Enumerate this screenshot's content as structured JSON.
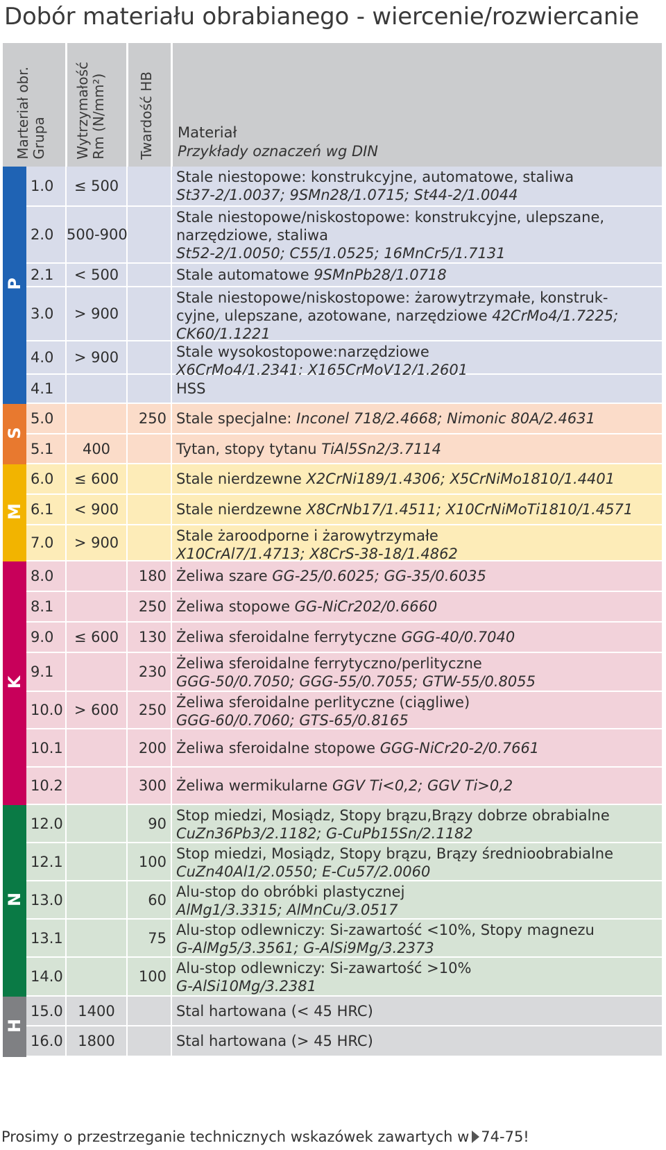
{
  "title": "Dobór materiału obrabianego - wiercenie/rozwiercanie",
  "header": {
    "group_line1": "Marteriał obr.",
    "group_line2": "Grupa",
    "strength_line1": "Wytrzymałość",
    "strength_line2": "Rm (N/mm²)",
    "hardness": "Twardość HB",
    "material": "Materiał",
    "examples": "Przykłady oznaczeń wg DIN"
  },
  "groups": [
    {
      "letter": "P",
      "color": "#1f63b4",
      "bg": "#d8dcea",
      "rows": [
        {
          "group": "1.0",
          "strength": "≤ 500",
          "hb": "",
          "lines": [
            {
              "text": "Stale niestopowe: konstrukcyjne, automatowe, staliwa",
              "italic": ""
            },
            {
              "text": "",
              "italic": "St37-2/1.0037; 9SMn28/1.0715; St44-2/1.0044"
            }
          ]
        },
        {
          "group": "2.0",
          "strength": "500-900",
          "hb": "",
          "lines": [
            {
              "text": "Stale niestopowe/niskostopowe: konstrukcyjne, ulepszane,",
              "italic": ""
            },
            {
              "text": "narzędziowe, staliwa",
              "italic": ""
            },
            {
              "text": "",
              "italic": "St52-2/1.0050; C55/1.0525; 16MnCr5/1.7131"
            }
          ]
        },
        {
          "group": "2.1",
          "strength": "< 500",
          "hb": "",
          "lines": [
            {
              "text": "Stale automatowe ",
              "italic": "9SMnPb28/1.0718"
            }
          ]
        },
        {
          "group": "3.0",
          "strength": "> 900",
          "hb": "",
          "lines": [
            {
              "text": "Stale niestopowe/niskostopowe: żarowytrzymałe, konstruk-",
              "italic": ""
            },
            {
              "text": "cyjne, ulepszane, azotowane, narzędziowe ",
              "italic": "42CrMo4/1.7225;"
            },
            {
              "text": "",
              "italic": "CK60/1.1221"
            }
          ]
        },
        {
          "group": "4.0",
          "strength": "> 900",
          "hb": "",
          "lines": [
            {
              "text": "Stale wysokostopowe:narzędziowe",
              "italic": ""
            },
            {
              "text": "",
              "italic": "X6CrMo4/1.2341; X165CrMoV12/1.2601"
            }
          ]
        },
        {
          "group": "4.1",
          "strength": "",
          "hb": "",
          "lines": [
            {
              "text": "HSS",
              "italic": ""
            }
          ]
        }
      ]
    },
    {
      "letter": "S",
      "color": "#e8792f",
      "bg": "#fbdcc9",
      "rows": [
        {
          "group": "5.0",
          "strength": "",
          "hb": "250",
          "lines": [
            {
              "text": "Stale specjalne: ",
              "italic": "Inconel 718/2.4668; Nimonic 80A/2.4631"
            }
          ]
        },
        {
          "group": "5.1",
          "strength": "400",
          "hb": "",
          "lines": [
            {
              "text": "Tytan, stopy tytanu ",
              "italic": "TiAl5Sn2/3.7114"
            }
          ]
        }
      ]
    },
    {
      "letter": "M",
      "color": "#f2b400",
      "bg": "#fdecb8",
      "rows": [
        {
          "group": "6.0",
          "strength": "≤ 600",
          "hb": "",
          "lines": [
            {
              "text": "Stale nierdzewne ",
              "italic": "X2CrNi189/1.4306; X5CrNiMo1810/1.4401"
            }
          ]
        },
        {
          "group": "6.1",
          "strength": "< 900",
          "hb": "",
          "lines": [
            {
              "text": "Stale nierdzewne  ",
              "italic": "X8CrNb17/1.4511; X10CrNiMoTi1810/1.4571"
            }
          ]
        },
        {
          "group": "7.0",
          "strength": "> 900",
          "hb": "",
          "lines": [
            {
              "text": "Stale żaroodporne i żarowytrzymałe",
              "italic": ""
            },
            {
              "text": "",
              "italic": "X10CrAl7/1.4713; X8CrS-38-18/1.4862"
            }
          ]
        }
      ]
    },
    {
      "letter": "K",
      "color": "#c8005a",
      "bg": "#f2d2da",
      "rows": [
        {
          "group": "8.0",
          "strength": "",
          "hb": "180",
          "lines": [
            {
              "text": "Żeliwa szare ",
              "italic": "GG-25/0.6025; GG-35/0.6035"
            }
          ]
        },
        {
          "group": "8.1",
          "strength": "",
          "hb": "250",
          "lines": [
            {
              "text": "Żeliwa stopowe ",
              "italic": "GG-NiCr202/0.6660"
            }
          ]
        },
        {
          "group": "9.0",
          "strength": "≤ 600",
          "hb": "130",
          "lines": [
            {
              "text": "Żeliwa sferoidalne ferrytyczne ",
              "italic": "GGG-40/0.7040"
            }
          ]
        },
        {
          "group": "9.1",
          "strength": "",
          "hb": "230",
          "lines": [
            {
              "text": "Żeliwa sferoidalne ferrytyczno/perlityczne",
              "italic": ""
            },
            {
              "text": "",
              "italic": "GGG-50/0.7050; GGG-55/0.7055; GTW-55/0.8055"
            }
          ]
        },
        {
          "group": "10.0",
          "strength": "> 600",
          "hb": "250",
          "lines": [
            {
              "text": "Żeliwa sferoidalne perlityczne (ciągliwe)",
              "italic": ""
            },
            {
              "text": "",
              "italic": "GGG-60/0.7060; GTS-65/0.8165"
            }
          ]
        },
        {
          "group": "10.1",
          "strength": "",
          "hb": "200",
          "lines": [
            {
              "text": "Żeliwa sferoidalne stopowe ",
              "italic": "GGG-NiCr20-2/0.7661"
            }
          ]
        },
        {
          "group": "10.2",
          "strength": "",
          "hb": "300",
          "lines": [
            {
              "text": "Żeliwa wermikularne ",
              "italic": "GGV Ti<0,2; GGV Ti>0,2"
            }
          ]
        }
      ]
    },
    {
      "letter": "N",
      "color": "#0a7a45",
      "bg": "#d6e3d5",
      "rows": [
        {
          "group": "12.0",
          "strength": "",
          "hb": "90",
          "lines": [
            {
              "text": "Stop miedzi, Mosiądz, Stopy brązu,Brązy dobrze obrabialne",
              "italic": ""
            },
            {
              "text": "",
              "italic": "CuZn36Pb3/2.1182; G-CuPb15Sn/2.1182"
            }
          ]
        },
        {
          "group": "12.1",
          "strength": "",
          "hb": "100",
          "lines": [
            {
              "text": "Stop miedzi, Mosiądz, Stopy brązu, Brązy średnioobrabialne",
              "italic": ""
            },
            {
              "text": "",
              "italic": "CuZn40Al1/2.0550; E-Cu57/2.0060"
            }
          ]
        },
        {
          "group": "13.0",
          "strength": "",
          "hb": "60",
          "lines": [
            {
              "text": "Alu-stop do obróbki plastycznej",
              "italic": ""
            },
            {
              "text": "",
              "italic": "AlMg1/3.3315; AlMnCu/3.0517"
            }
          ]
        },
        {
          "group": "13.1",
          "strength": "",
          "hb": "75",
          "lines": [
            {
              "text": "Alu-stop odlewniczy: Si-zawartość <10%, Stopy magnezu",
              "italic": ""
            },
            {
              "text": "",
              "italic": "G-AlMg5/3.3561; G-AlSi9Mg/3.2373"
            }
          ]
        },
        {
          "group": "14.0",
          "strength": "",
          "hb": "100",
          "lines": [
            {
              "text": "Alu-stop odlewniczy: Si-zawartość >10%",
              "italic": ""
            },
            {
              "text": "",
              "italic": "G-AlSi10Mg/3.2381"
            }
          ]
        }
      ]
    },
    {
      "letter": "H",
      "color": "#7f8083",
      "bg": "#d8d9db",
      "rows": [
        {
          "group": "15.0",
          "strength": "1400",
          "hb": "",
          "lines": [
            {
              "text": "Stal hartowana (< 45 HRC)",
              "italic": ""
            }
          ]
        },
        {
          "group": "16.0",
          "strength": "1800",
          "hb": "",
          "lines": [
            {
              "text": "Stal hartowana (> 45 HRC)",
              "italic": ""
            }
          ]
        }
      ]
    }
  ],
  "footer": {
    "text": "Prosimy o przestrzeganie technicznych wskazówek zawartych w",
    "ref": "74-75!"
  }
}
